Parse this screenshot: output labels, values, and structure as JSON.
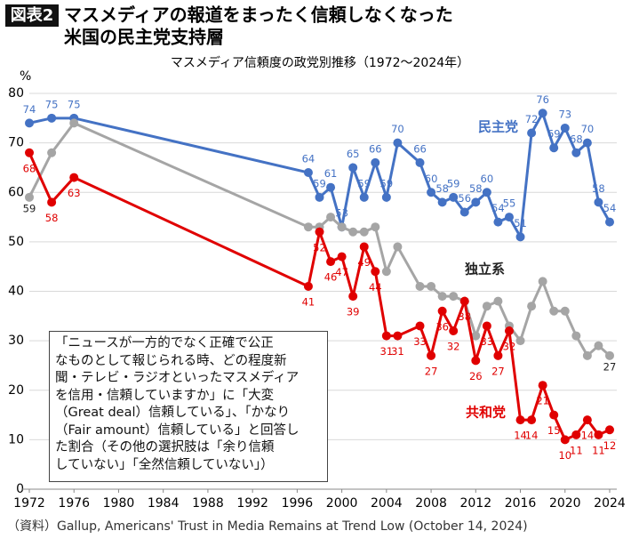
{
  "chart_data": {
    "type": "line",
    "badge": "図表2",
    "title_lines": [
      "マスメディアの報道をまったく信頼しなくなった",
      "米国の民主党支持層"
    ],
    "subtitle": "マスメディア信頼度の政党別推移（1972〜2024年）",
    "y_unit": "%",
    "x": [
      1972,
      1974,
      1976,
      1997,
      1998,
      1999,
      2000,
      2001,
      2002,
      2003,
      2004,
      2005,
      2007,
      2008,
      2009,
      2010,
      2011,
      2012,
      2013,
      2014,
      2015,
      2016,
      2017,
      2018,
      2019,
      2020,
      2021,
      2022,
      2023,
      2024
    ],
    "series": [
      {
        "name": "民主党",
        "color": "#4472c4",
        "values": [
          74,
          75,
          75,
          64,
          59,
          61,
          53,
          65,
          59,
          66,
          59,
          70,
          66,
          60,
          58,
          59,
          56,
          58,
          60,
          54,
          55,
          51,
          72,
          76,
          69,
          73,
          68,
          70,
          58,
          54
        ],
        "value_labels": [
          "74",
          "75",
          "75",
          "64",
          "59",
          "61",
          "53",
          "65",
          "59",
          "66",
          "59",
          "70",
          "66",
          "60",
          "58",
          "59",
          "56",
          "58",
          "60",
          "54",
          "55",
          "51",
          "72",
          "76",
          "69",
          "73",
          "68",
          "70",
          "58",
          "54"
        ]
      },
      {
        "name": "独立系",
        "color": "#a5a5a5",
        "values": [
          59,
          68,
          74,
          53,
          53,
          55,
          53,
          52,
          52,
          53,
          44,
          49,
          41,
          41,
          39,
          39,
          38,
          31,
          37,
          38,
          33,
          30,
          37,
          42,
          36,
          36,
          31,
          27,
          29,
          27
        ],
        "value_labels": [
          "59",
          null,
          null,
          null,
          null,
          null,
          null,
          null,
          null,
          null,
          null,
          null,
          null,
          null,
          null,
          null,
          null,
          null,
          null,
          null,
          null,
          null,
          null,
          null,
          null,
          null,
          null,
          null,
          null,
          "27"
        ]
      },
      {
        "name": "共和党",
        "color": "#e00000",
        "values": [
          68,
          58,
          63,
          41,
          52,
          46,
          47,
          39,
          49,
          44,
          31,
          31,
          33,
          27,
          36,
          32,
          38,
          26,
          33,
          27,
          32,
          14,
          14,
          21,
          15,
          10,
          11,
          14,
          11,
          12
        ],
        "value_labels": [
          "68",
          "58",
          "63",
          "41",
          "52",
          "46",
          "47",
          "39",
          "49",
          "44",
          "31",
          "31",
          "33",
          "27",
          "36",
          "32",
          "38",
          "26",
          "33",
          "27",
          "32",
          "14",
          "14",
          "21",
          "15",
          "10",
          "11",
          "14",
          "11",
          "12"
        ]
      }
    ],
    "xlim": [
      1972,
      2024
    ],
    "xticks": [
      1972,
      1976,
      1980,
      1984,
      1988,
      1992,
      1996,
      2000,
      2004,
      2008,
      2012,
      2016,
      2020,
      2024
    ],
    "ylim": [
      0,
      80
    ],
    "yticks": [
      0,
      10,
      20,
      30,
      40,
      50,
      60,
      70,
      80
    ],
    "grid": true,
    "note": {
      "lines": [
        "「ニュースが一方的でなく正確で公正",
        "なものとして報じられる時、どの程度新",
        "聞・テレビ・ラジオといったマスメディア",
        "を信用・信頼していますか」に「大変",
        "（Great deal）信頼している」、「かなり",
        "（Fair amount）信頼している」と回答し",
        "た割合（その他の選択肢は「余り信頼",
        "していない」「全然信頼していない」）"
      ]
    },
    "source": "（資料）Gallup, Americans' Trust in Media Remains at Trend Low (October 14, 2024)"
  }
}
